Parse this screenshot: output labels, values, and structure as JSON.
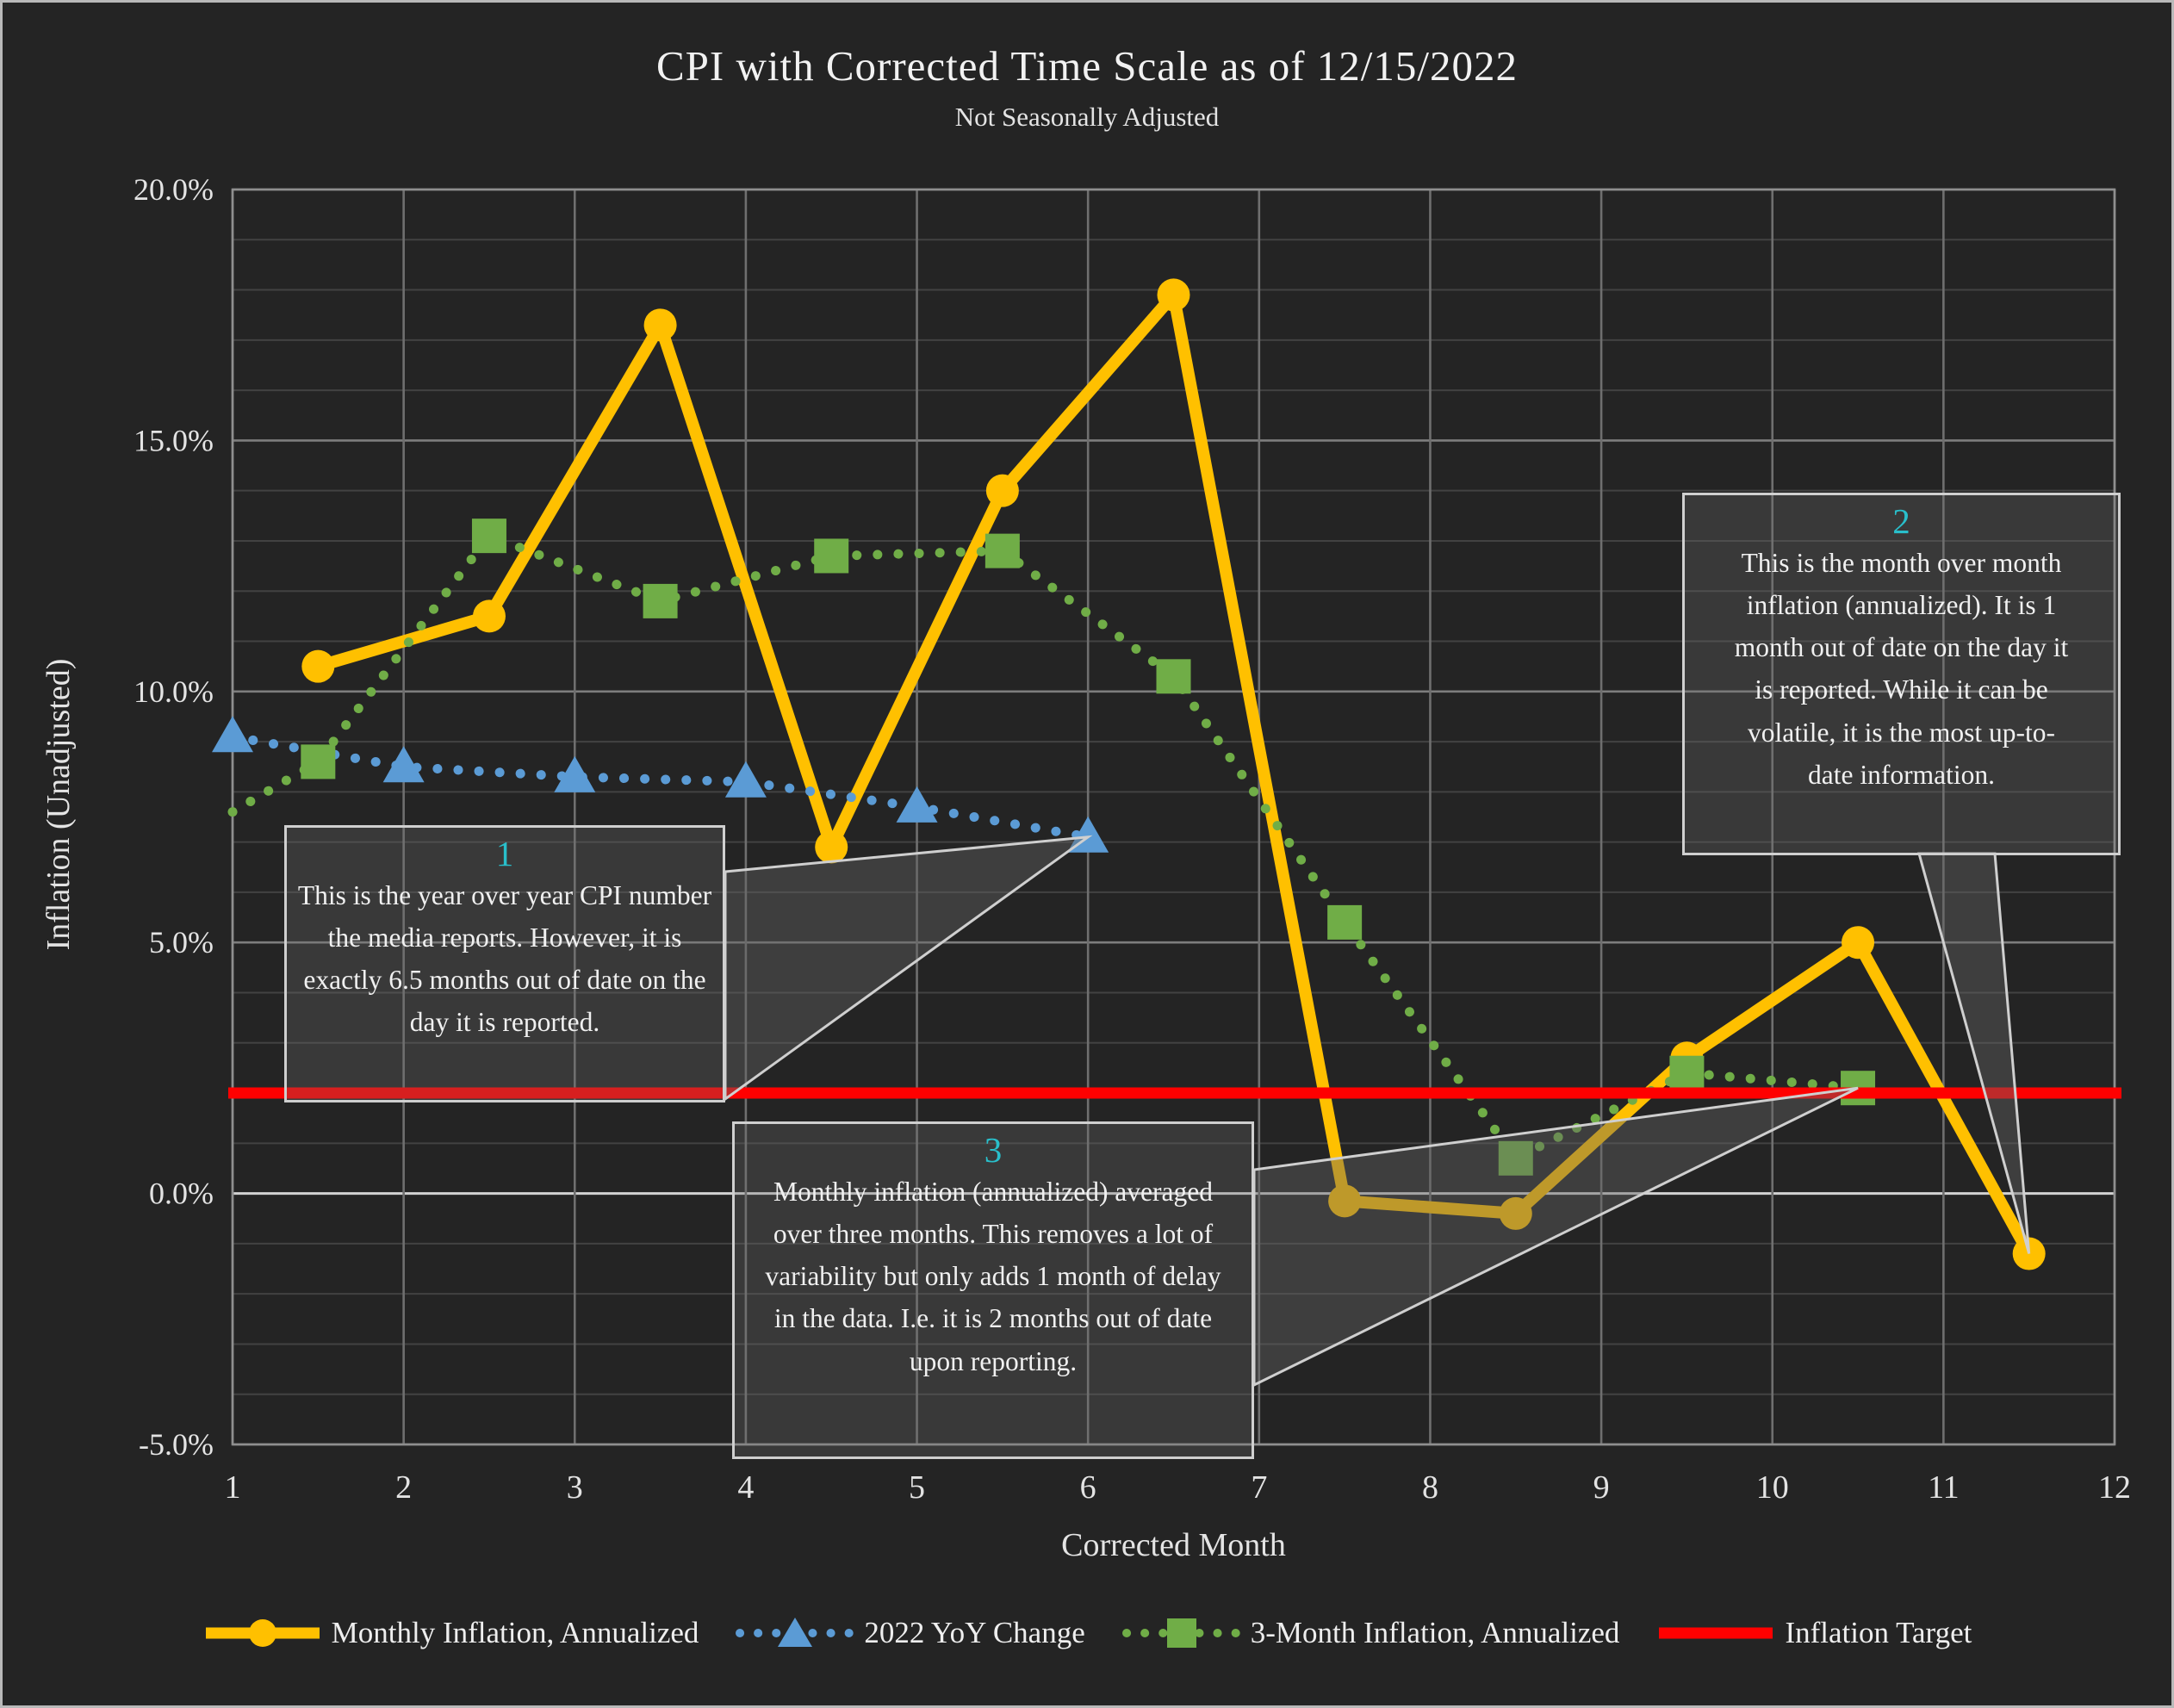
{
  "title": "CPI with Corrected Time Scale as of 12/15/2022",
  "subtitle": "Not Seasonally Adjusted",
  "colors": {
    "background": "#242424",
    "monthly_inflation": "#FFC000",
    "yoy_change": "#5B9BD5",
    "three_month_inflation": "#70AD47",
    "inflation_target": "#FF0000",
    "annotation_number": "#29bfcb",
    "gridline_minor": "#424242",
    "gridline_major": "#7d7d7d",
    "zero_line": "#d2d2d2",
    "gridline_vertical": "#6f6f6f"
  },
  "chart_data": {
    "type": "line",
    "title": "CPI with Corrected Time Scale as of 12/15/2022",
    "subtitle": "Not Seasonally Adjusted",
    "xlabel": "Corrected Month",
    "ylabel": "Inflation (Unadjusted)",
    "xlim": [
      1,
      12
    ],
    "ylim": [
      -5,
      20
    ],
    "x_ticks": [
      1,
      2,
      3,
      4,
      5,
      6,
      7,
      8,
      9,
      10,
      11,
      12
    ],
    "y_ticks": [
      {
        "value": 20,
        "label": "20.0%"
      },
      {
        "value": 15,
        "label": "15.0%"
      },
      {
        "value": 10,
        "label": "10.0%"
      },
      {
        "value": 5,
        "label": "5.0%"
      },
      {
        "value": 0,
        "label": "0.0%"
      },
      {
        "value": -5,
        "label": "-5.0%"
      }
    ],
    "grid": {
      "minor_step_pct": 1,
      "major_step_pct": 5,
      "vertical_step_months": 1
    },
    "series": [
      {
        "name": "Monthly Inflation, Annualized",
        "color": "#FFC000",
        "line_style": "solid",
        "marker": "circle",
        "points": [
          [
            1.5,
            10.5
          ],
          [
            2.5,
            11.5
          ],
          [
            3.5,
            17.3
          ],
          [
            4.5,
            6.9
          ],
          [
            5.5,
            14.0
          ],
          [
            6.5,
            17.9
          ],
          [
            7.5,
            -0.15
          ],
          [
            8.5,
            -0.4
          ],
          [
            9.5,
            2.7
          ],
          [
            10.5,
            5.0
          ],
          [
            11.5,
            -1.2
          ]
        ]
      },
      {
        "name": "2022 YoY Change",
        "color": "#5B9BD5",
        "line_style": "dotted",
        "marker": "triangle",
        "points": [
          [
            1,
            9.1
          ],
          [
            2,
            8.5
          ],
          [
            3,
            8.3
          ],
          [
            4,
            8.2
          ],
          [
            5,
            7.7
          ],
          [
            6,
            7.1
          ]
        ]
      },
      {
        "name": "3-Month Inflation, Annualized",
        "color": "#70AD47",
        "line_style": "dotted",
        "marker": "square",
        "skip_first_marker": true,
        "points": [
          [
            1,
            7.6
          ],
          [
            1.5,
            8.6
          ],
          [
            2.5,
            13.1
          ],
          [
            3.5,
            11.8
          ],
          [
            4.5,
            12.7
          ],
          [
            5.5,
            12.8
          ],
          [
            6.5,
            10.3
          ],
          [
            7.5,
            5.4
          ],
          [
            8.5,
            0.7
          ],
          [
            9.5,
            2.4
          ],
          [
            10.5,
            2.1
          ]
        ]
      },
      {
        "name": "Inflation Target",
        "color": "#FF0000",
        "line_style": "solid",
        "marker": "none",
        "hline": 2.0
      }
    ],
    "annotations": [
      {
        "number": "1",
        "text": "This is the year over year CPI number the media reports.  However, it is exactly 6.5 months out of date on the day it is reported.",
        "target": {
          "x": 6,
          "y": 7.1
        }
      },
      {
        "number": "2",
        "text": "This is the month over month inflation (annualized).  It is 1 month out of date on the day it is reported.  While it can be volatile, it is the most up-to-date information.",
        "target": {
          "x": 11.5,
          "y": -1.2
        }
      },
      {
        "number": "3",
        "text": "Monthly inflation (annualized) averaged over three months. This removes a lot of variability but only adds 1 month of delay in the data.  I.e. it is 2 months out of date upon reporting.",
        "target": {
          "x": 10.5,
          "y": 2.1
        }
      }
    ]
  },
  "legend": {
    "items": [
      {
        "label": "Monthly Inflation, Annualized",
        "color": "#FFC000",
        "marker": "circle",
        "line_style": "solid"
      },
      {
        "label": "2022 YoY Change",
        "color": "#5B9BD5",
        "marker": "triangle",
        "line_style": "dotted"
      },
      {
        "label": "3-Month Inflation, Annualized",
        "color": "#70AD47",
        "marker": "square",
        "line_style": "dotted"
      },
      {
        "label": "Inflation Target",
        "color": "#FF0000",
        "marker": "none",
        "line_style": "solid"
      }
    ]
  }
}
